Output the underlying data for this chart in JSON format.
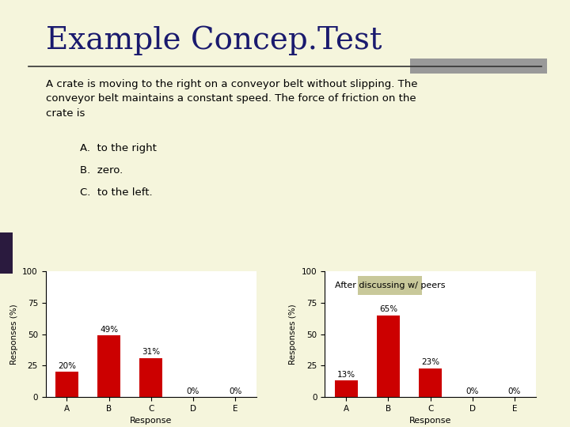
{
  "title": "Example Concep.Test",
  "title_fontsize": 28,
  "title_color": "#1a1a6e",
  "background_color": "#f5f5dc",
  "separator_line_color": "#333333",
  "separator_rect_color": "#999999",
  "question_text": "A crate is moving to the right on a conveyor belt without slipping. The\nconveyor belt maintains a constant speed. The force of friction on the\ncrate is",
  "choices": [
    "A.  to the right",
    "B.  zero.",
    "C.  to the left."
  ],
  "left_bar_color": "#2a1a3e",
  "chart1": {
    "categories": [
      "A",
      "B",
      "C",
      "D",
      "E"
    ],
    "values": [
      20,
      49,
      31,
      0,
      0
    ],
    "labels": [
      "20%",
      "49%",
      "31%",
      "0%",
      "0%"
    ],
    "bar_color": "#cc0000",
    "ylabel": "Responses (%)",
    "xlabel": "Response",
    "ylim": [
      0,
      100
    ],
    "yticks": [
      0,
      25,
      50,
      75,
      100
    ]
  },
  "chart2": {
    "categories": [
      "A",
      "B",
      "C",
      "D",
      "E"
    ],
    "values": [
      13,
      65,
      23,
      0,
      0
    ],
    "labels": [
      "13%",
      "65%",
      "23%",
      "0%",
      "0%"
    ],
    "bar_color": "#cc0000",
    "ylabel": "Responses (%)",
    "xlabel": "Response",
    "ylim": [
      0,
      100
    ],
    "yticks": [
      0,
      25,
      50,
      75,
      100
    ],
    "annotation": "After discussing w/ peers",
    "annotation_bg": "#c8c89a",
    "annotation_color": "#000000"
  }
}
